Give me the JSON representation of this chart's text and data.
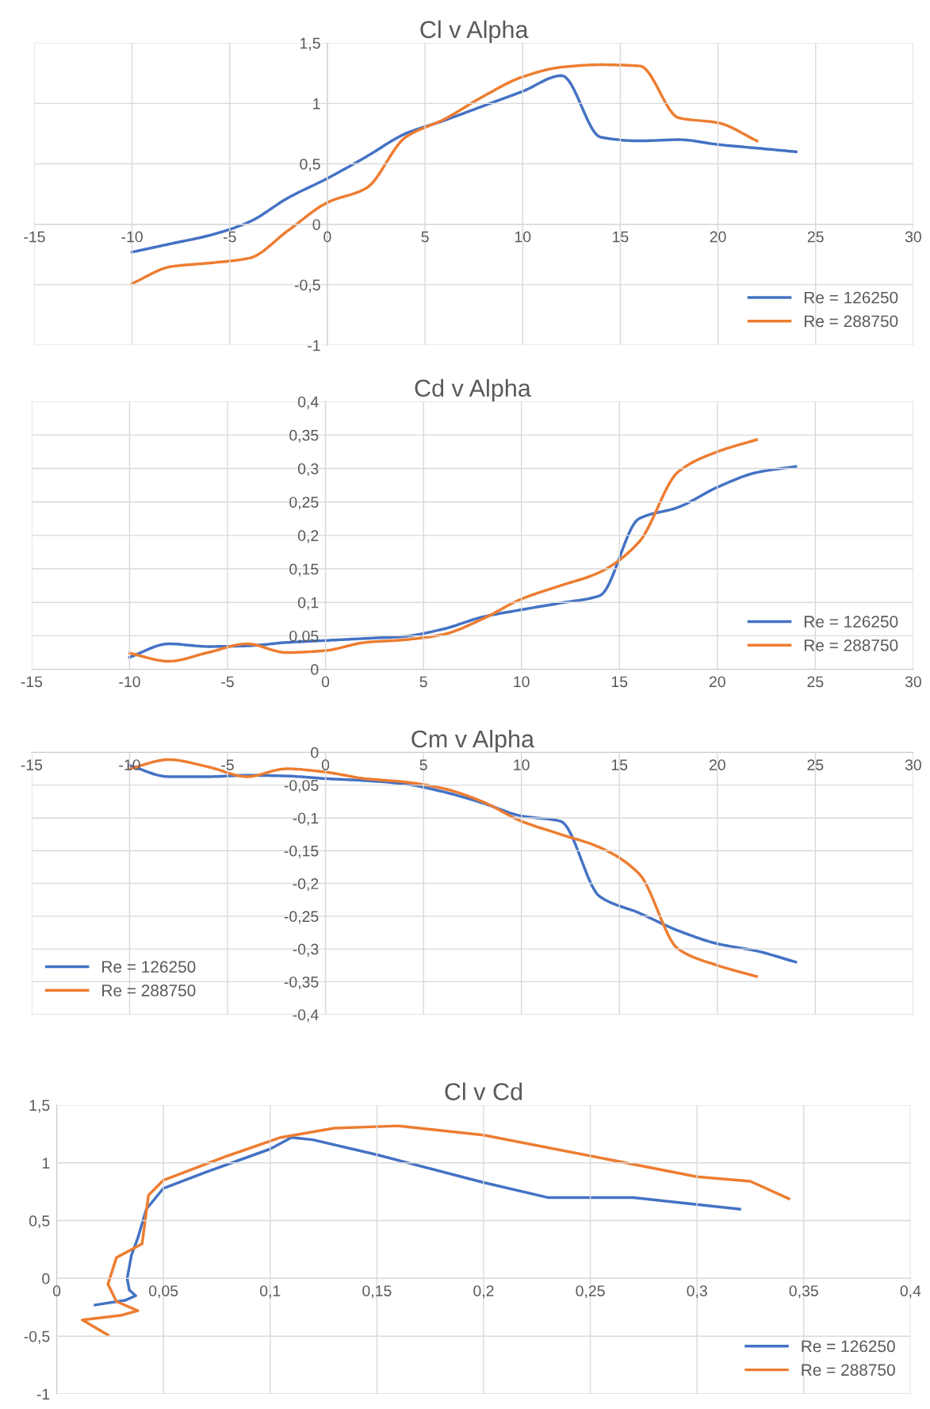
{
  "chart_data": [
    {
      "type": "line",
      "title": "Cl v Alpha",
      "legend": "lower right",
      "grid": true,
      "marker": "none",
      "line_style": "solid",
      "xlim": [
        -15,
        30
      ],
      "xticks": [
        -15,
        -10,
        -5,
        0,
        5,
        10,
        15,
        20,
        25,
        30
      ],
      "ylim": [
        -1,
        1.5
      ],
      "yticks": [
        -1,
        {
          "value": -0.5,
          "label": "-0,5"
        },
        0,
        {
          "value": 0.5,
          "label": "0,5"
        },
        1,
        {
          "value": 1.5,
          "label": "1,5"
        }
      ],
      "x": [
        -10,
        -8,
        -6,
        -4,
        -2,
        0,
        2,
        4,
        6,
        8,
        10,
        12,
        14,
        16,
        18,
        20,
        22,
        24
      ],
      "series": [
        {
          "name": "Re = 126250",
          "color": "#4472c4",
          "values": [
            -0.23,
            -0.16,
            -0.09,
            0.02,
            0.22,
            0.38,
            0.56,
            0.75,
            0.86,
            0.98,
            1.1,
            1.23,
            0.72,
            0.69,
            0.7,
            0.66,
            0.63,
            0.6
          ]
        },
        {
          "name": "Re = 288750",
          "color": "#ed7d31",
          "values": [
            -0.49,
            -0.35,
            -0.32,
            -0.28,
            -0.05,
            0.18,
            0.3,
            0.72,
            0.87,
            1.06,
            1.22,
            1.3,
            1.32,
            1.31,
            0.88,
            0.84,
            0.69,
            null
          ]
        }
      ]
    },
    {
      "type": "line",
      "title": "Cd v Alpha",
      "legend": "lower right",
      "grid": true,
      "marker": "none",
      "line_style": "solid",
      "xlim": [
        -15,
        30
      ],
      "xticks": [
        -15,
        -10,
        -5,
        0,
        5,
        10,
        15,
        20,
        25,
        30
      ],
      "ylim": [
        0,
        0.4
      ],
      "yticks": [
        0,
        {
          "value": 0.05,
          "label": "0,05"
        },
        {
          "value": 0.1,
          "label": "0,1"
        },
        {
          "value": 0.15,
          "label": "0,15"
        },
        {
          "value": 0.2,
          "label": "0,2"
        },
        {
          "value": 0.25,
          "label": "0,25"
        },
        {
          "value": 0.3,
          "label": "0,3"
        },
        {
          "value": 0.35,
          "label": "0,35"
        },
        {
          "value": 0.4,
          "label": "0,4"
        }
      ],
      "x": [
        -10,
        -8,
        -6,
        -4,
        -2,
        0,
        2,
        4,
        6,
        8,
        10,
        12,
        14,
        16,
        18,
        20,
        22,
        24
      ],
      "series": [
        {
          "name": "Re = 126250",
          "color": "#4472c4",
          "values": [
            0.018,
            0.038,
            0.034,
            0.035,
            0.04,
            0.043,
            0.046,
            0.049,
            0.06,
            0.078,
            0.089,
            0.099,
            0.11,
            0.225,
            0.242,
            0.272,
            0.294,
            0.303
          ]
        },
        {
          "name": "Re = 288750",
          "color": "#ed7d31",
          "values": [
            0.024,
            0.012,
            0.025,
            0.038,
            0.025,
            0.028,
            0.04,
            0.044,
            0.052,
            0.075,
            0.105,
            0.125,
            0.145,
            0.19,
            0.295,
            0.325,
            0.343,
            null
          ]
        }
      ]
    },
    {
      "type": "line",
      "title": "Cm v Alpha",
      "legend": "lower left",
      "grid": true,
      "marker": "none",
      "line_style": "solid",
      "xlim": [
        -15,
        30
      ],
      "xticks": [
        -15,
        -10,
        -5,
        0,
        5,
        10,
        15,
        20,
        25,
        30
      ],
      "ylim": [
        -0.4,
        0
      ],
      "yticks": [
        {
          "value": -0.4,
          "label": "-0,4"
        },
        {
          "value": -0.35,
          "label": "-0,35"
        },
        {
          "value": -0.3,
          "label": "-0,3"
        },
        {
          "value": -0.25,
          "label": "-0,25"
        },
        {
          "value": -0.2,
          "label": "-0,2"
        },
        {
          "value": -0.15,
          "label": "-0,15"
        },
        {
          "value": -0.1,
          "label": "-0,1"
        },
        {
          "value": -0.05,
          "label": "-0,05"
        },
        0
      ],
      "x": [
        -10,
        -8,
        -6,
        -4,
        -2,
        0,
        2,
        4,
        6,
        8,
        10,
        12,
        14,
        16,
        18,
        20,
        22,
        24
      ],
      "series": [
        {
          "name": "Re = 126250",
          "color": "#4472c4",
          "values": [
            -0.02,
            -0.037,
            -0.037,
            -0.035,
            -0.036,
            -0.04,
            -0.043,
            -0.048,
            -0.06,
            -0.077,
            -0.097,
            -0.105,
            -0.22,
            -0.245,
            -0.272,
            -0.292,
            -0.303,
            -0.32
          ]
        },
        {
          "name": "Re = 288750",
          "color": "#ed7d31",
          "values": [
            -0.025,
            -0.011,
            -0.022,
            -0.037,
            -0.025,
            -0.03,
            -0.04,
            -0.045,
            -0.055,
            -0.075,
            -0.105,
            -0.125,
            -0.145,
            -0.185,
            -0.3,
            -0.325,
            -0.342,
            null
          ]
        }
      ]
    },
    {
      "type": "line",
      "title": "Cl v Cd",
      "legend": "lower right",
      "grid": true,
      "marker": "none",
      "line_style": "solid",
      "xlim": [
        0,
        0.4
      ],
      "xticks": [
        0,
        {
          "value": 0.05,
          "label": "0,05"
        },
        {
          "value": 0.1,
          "label": "0,1"
        },
        {
          "value": 0.15,
          "label": "0,15"
        },
        {
          "value": 0.2,
          "label": "0,2"
        },
        {
          "value": 0.25,
          "label": "0,25"
        },
        {
          "value": 0.3,
          "label": "0,3"
        },
        {
          "value": 0.35,
          "label": "0,35"
        },
        {
          "value": 0.4,
          "label": "0,4"
        }
      ],
      "ylim": [
        -1,
        1.5
      ],
      "yticks": [
        -1,
        {
          "value": -0.5,
          "label": "-0,5"
        },
        0,
        {
          "value": 0.5,
          "label": "0,5"
        },
        1,
        {
          "value": 1.5,
          "label": "1,5"
        }
      ],
      "series": [
        {
          "name": "Re = 126250",
          "color": "#4472c4",
          "x": [
            0.018,
            0.032,
            0.037,
            0.034,
            0.033,
            0.035,
            0.038,
            0.042,
            0.05,
            0.07,
            0.1,
            0.11,
            0.12,
            0.15,
            0.2,
            0.23,
            0.27,
            0.3,
            0.32
          ],
          "values": [
            -0.23,
            -0.19,
            -0.15,
            -0.1,
            0.0,
            0.2,
            0.35,
            0.6,
            0.78,
            0.92,
            1.12,
            1.22,
            1.2,
            1.07,
            0.83,
            0.7,
            0.7,
            0.64,
            0.6
          ]
        },
        {
          "name": "Re = 288750",
          "color": "#ed7d31",
          "x": [
            0.024,
            0.012,
            0.03,
            0.038,
            0.028,
            0.024,
            0.028,
            0.035,
            0.04,
            0.043,
            0.05,
            0.08,
            0.105,
            0.13,
            0.16,
            0.2,
            0.3,
            0.325,
            0.343
          ],
          "values": [
            -0.49,
            -0.36,
            -0.32,
            -0.28,
            -0.2,
            -0.05,
            0.18,
            0.25,
            0.3,
            0.72,
            0.85,
            1.06,
            1.22,
            1.3,
            1.32,
            1.24,
            0.88,
            0.84,
            0.69
          ]
        }
      ]
    }
  ]
}
